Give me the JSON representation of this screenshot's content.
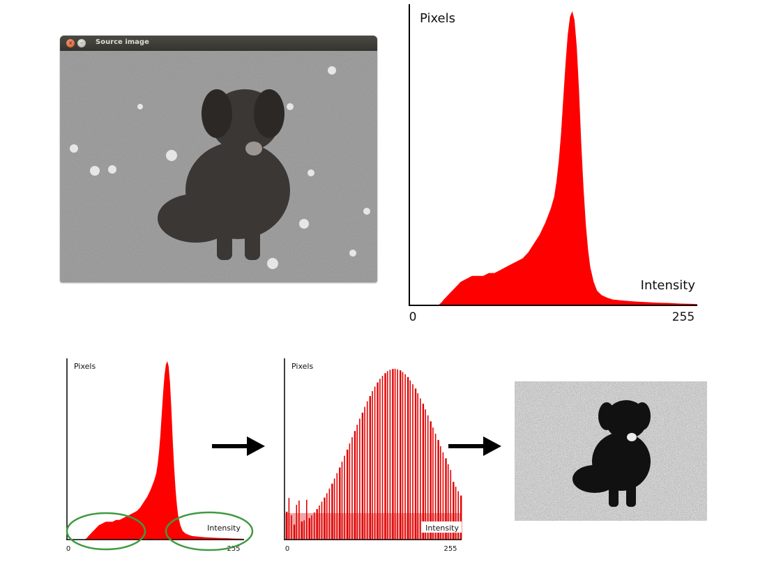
{
  "window": {
    "title": "Source image",
    "buttons": [
      "close-button",
      "minimize-button"
    ],
    "close_glyph": "×",
    "min_glyph": "–"
  },
  "colors": {
    "histogram_fill": "#ff0000",
    "axis": "#000000",
    "ellipse": "#3f9a3f",
    "titlebar": "#3c3b37"
  },
  "chart_data": [
    {
      "type": "area",
      "name": "original_histogram",
      "ylabel": "Pixels",
      "xlabel": "Intensity",
      "xlim": [
        0,
        255
      ],
      "tick_labels": [
        "0",
        "255"
      ],
      "x": [
        0,
        10,
        20,
        25,
        28,
        30,
        35,
        40,
        45,
        50,
        55,
        60,
        65,
        70,
        75,
        80,
        85,
        90,
        95,
        100,
        105,
        110,
        115,
        120,
        125,
        128,
        130,
        132,
        134,
        136,
        138,
        140,
        142,
        144,
        146,
        148,
        150,
        152,
        154,
        156,
        158,
        160,
        163,
        166,
        170,
        175,
        180,
        190,
        200,
        210,
        220,
        230,
        240,
        250,
        255
      ],
      "y": [
        0,
        0,
        0,
        0,
        1,
        2,
        4,
        6,
        8,
        9,
        10,
        10,
        10,
        11,
        11,
        12,
        13,
        14,
        15,
        16,
        18,
        21,
        24,
        28,
        33,
        37,
        42,
        49,
        58,
        70,
        82,
        92,
        98,
        100,
        97,
        88,
        73,
        55,
        40,
        28,
        19,
        13,
        8,
        5,
        3.5,
        2.6,
        2.0,
        1.6,
        1.3,
        1.1,
        0.9,
        0.8,
        0.6,
        0.5,
        0.4
      ]
    },
    {
      "type": "area",
      "name": "original_histogram_small",
      "ylabel": "Pixels",
      "xlabel": "Intensity",
      "xlim": [
        0,
        255
      ],
      "tick_labels": [
        "0",
        "255"
      ],
      "annotations": [
        "low-intensity region ellipse",
        "high-intensity region ellipse"
      ]
    },
    {
      "type": "bar",
      "name": "equalized_histogram",
      "ylabel": "Pixels",
      "xlabel": "Intensity",
      "xlim": [
        0,
        255
      ],
      "tick_labels": [
        "0",
        "255"
      ],
      "bars": 70
    }
  ],
  "labels": {
    "pixels": "Pixels",
    "intensity": "Intensity",
    "zero": "0",
    "max": "255"
  }
}
